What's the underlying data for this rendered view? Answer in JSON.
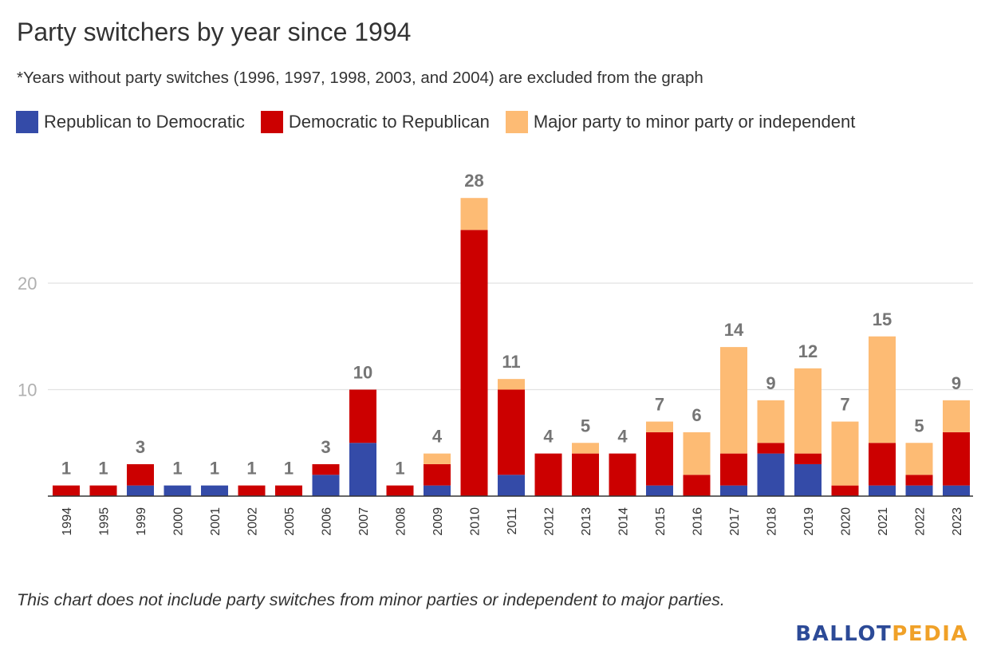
{
  "chart_data": {
    "type": "bar",
    "stacked": true,
    "title": "Party switchers by year since 1994",
    "subtitle": "*Years without party switches (1996, 1997, 1998, 2003, and 2004) are excluded from the graph",
    "footnote": "This chart does not include party switches from minor parties or independent to major parties.",
    "categories": [
      "1994",
      "1995",
      "1999",
      "2000",
      "2001",
      "2002",
      "2005",
      "2006",
      "2007",
      "2008",
      "2009",
      "2010",
      "2011",
      "2012",
      "2013",
      "2014",
      "2015",
      "2016",
      "2017",
      "2018",
      "2019",
      "2020",
      "2021",
      "2022",
      "2023"
    ],
    "series": [
      {
        "name": "Republican to Democratic",
        "color": "#344ba8",
        "values": [
          0,
          0,
          1,
          1,
          1,
          0,
          0,
          2,
          5,
          0,
          1,
          0,
          2,
          0,
          0,
          0,
          1,
          0,
          1,
          4,
          3,
          0,
          1,
          1,
          1
        ]
      },
      {
        "name": "Democratic to Republican",
        "color": "#cc0000",
        "values": [
          1,
          1,
          2,
          0,
          0,
          1,
          1,
          1,
          5,
          1,
          2,
          25,
          8,
          4,
          4,
          4,
          5,
          2,
          3,
          1,
          1,
          1,
          4,
          1,
          5
        ]
      },
      {
        "name": "Major party to minor party or independent",
        "color": "#fdbb74",
        "values": [
          0,
          0,
          0,
          0,
          0,
          0,
          0,
          0,
          0,
          0,
          1,
          3,
          1,
          0,
          1,
          0,
          1,
          4,
          10,
          4,
          8,
          6,
          10,
          3,
          3
        ]
      }
    ],
    "totals": [
      "1",
      "1",
      "3",
      "1",
      "1",
      "1",
      "1",
      "3",
      "10",
      "1",
      "4",
      "28",
      "11",
      "4",
      "5",
      "4",
      "7",
      "6",
      "14",
      "9",
      "12",
      "7",
      "15",
      "5",
      "9"
    ],
    "y_ticks": [
      "10",
      "20"
    ],
    "ylim": [
      0,
      30
    ],
    "grid": true,
    "legend_position": "top-left"
  },
  "branding": {
    "logo_part1": "BALLOT",
    "logo_part2": "PEDIA",
    "color1": "#2c4a97",
    "color2": "#f0a128"
  }
}
